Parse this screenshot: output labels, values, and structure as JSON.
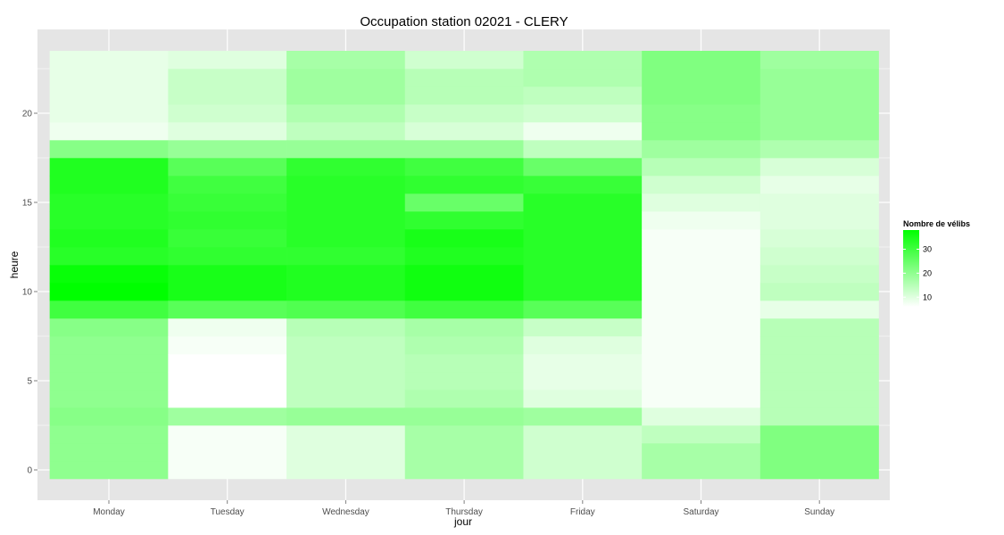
{
  "chart_data": {
    "type": "heatmap",
    "title": "Occupation station 02021 - CLERY",
    "xlabel": "jour",
    "ylabel": "heure",
    "x_categories": [
      "Monday",
      "Tuesday",
      "Wednesday",
      "Thursday",
      "Friday",
      "Saturday",
      "Sunday"
    ],
    "y_values": [
      0,
      1,
      2,
      3,
      4,
      5,
      6,
      7,
      8,
      9,
      10,
      11,
      12,
      13,
      14,
      15,
      16,
      17,
      18,
      19,
      20,
      21,
      22,
      23
    ],
    "y_ticks": [
      0,
      5,
      10,
      15,
      20
    ],
    "ylim": [
      -0.5,
      23.5
    ],
    "grid": true,
    "legend": {
      "title": "Nombre de vélibs",
      "ticks": [
        10,
        20,
        30
      ],
      "range": [
        6,
        38
      ],
      "low_color": "#ffffff",
      "high_color": "#00ff00",
      "placement": "right"
    },
    "colors": {
      "panel_background": "#e5e5e5",
      "grid": "#ffffff"
    },
    "values": [
      [
        20,
        20,
        20,
        21,
        20,
        20,
        20,
        20,
        21,
        30,
        38,
        37,
        33,
        34,
        33,
        33,
        34,
        34,
        21,
        8,
        9,
        9,
        9,
        9
      ],
      [
        7,
        7,
        7,
        18,
        6,
        6,
        6,
        7,
        8,
        27,
        35,
        35,
        32,
        31,
        32,
        31,
        30,
        27,
        19,
        10,
        12,
        13,
        13,
        10
      ],
      [
        10,
        10,
        10,
        19,
        14,
        14,
        14,
        14,
        15,
        28,
        34,
        34,
        32,
        33,
        33,
        33,
        33,
        32,
        19,
        14,
        16,
        18,
        18,
        17
      ],
      [
        17,
        17,
        17,
        19,
        16,
        15,
        15,
        16,
        17,
        30,
        36,
        36,
        34,
        35,
        32,
        25,
        32,
        30,
        19,
        11,
        13,
        15,
        15,
        12
      ],
      [
        12,
        12,
        12,
        18,
        10,
        9,
        9,
        10,
        13,
        27,
        33,
        33,
        33,
        33,
        33,
        33,
        31,
        25,
        14,
        8,
        12,
        14,
        16,
        16
      ],
      [
        17,
        17,
        14,
        10,
        7,
        7,
        7,
        7,
        7,
        7,
        7,
        7,
        7,
        7,
        8,
        10,
        12,
        15,
        18,
        21,
        21,
        22,
        22,
        22
      ],
      [
        22,
        22,
        22,
        15,
        15,
        15,
        15,
        15,
        15,
        9,
        14,
        13,
        12,
        11,
        10,
        10,
        9,
        11,
        16,
        19,
        19,
        19,
        19,
        18
      ]
    ]
  }
}
